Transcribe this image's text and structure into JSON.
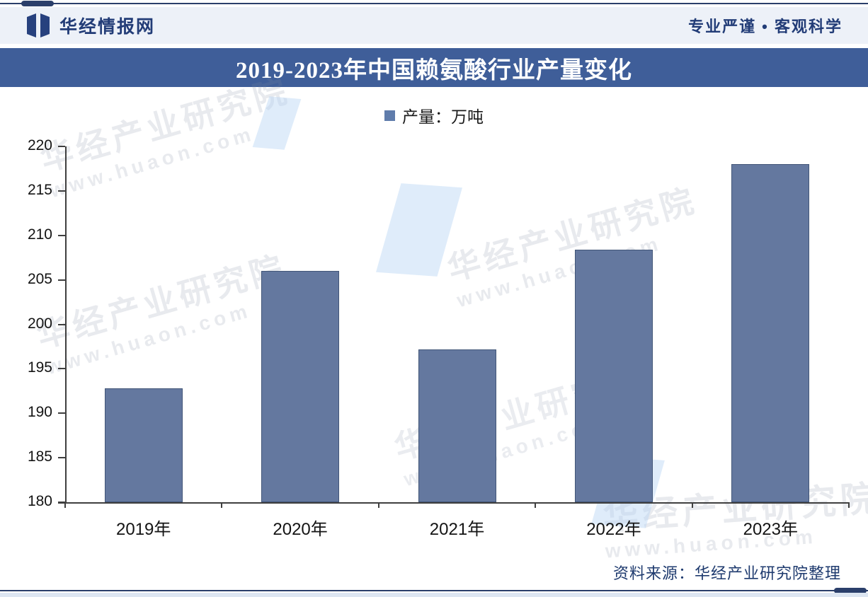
{
  "header": {
    "brand": "华经情报网",
    "tagline": "专业严谨 • 客观科学"
  },
  "title": "2019-2023年中国赖氨酸行业产量变化",
  "legend": {
    "label": "产量：万吨",
    "color": "#5f7cab"
  },
  "chart_data": {
    "type": "bar",
    "title": "2019-2023年中国赖氨酸行业产量变化",
    "categories": [
      "2019年",
      "2020年",
      "2021年",
      "2022年",
      "2023年"
    ],
    "values": [
      192.8,
      206,
      197.2,
      208.4,
      218
    ],
    "series_name": "产量：万吨",
    "ylabel": "",
    "xlabel": "",
    "ylim": [
      180,
      220
    ],
    "yticks": [
      180,
      185,
      190,
      195,
      200,
      205,
      210,
      215,
      220
    ],
    "bar_color": "#64789f",
    "grid": false,
    "legend_position": "top-center"
  },
  "watermark": {
    "text": "华经产业研究院",
    "url": "www.huaon.com"
  },
  "footer": {
    "source": "资料来源：华经产业研究院整理"
  }
}
